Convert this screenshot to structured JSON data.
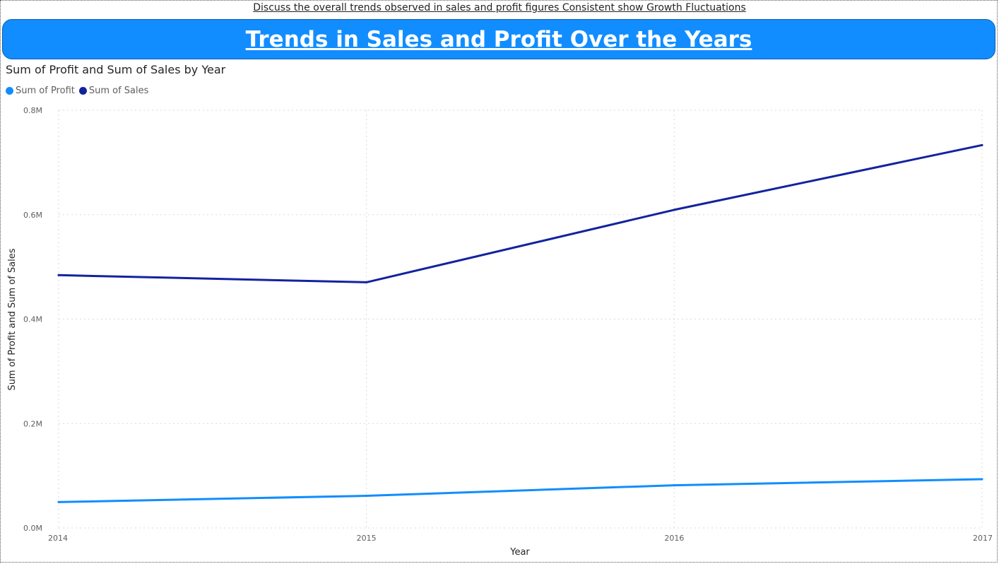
{
  "page": {
    "top_note": "Discuss the overall trends observed in sales and profit figures Consistent show Growth Fluctuations",
    "banner_title": "Trends in Sales and Profit Over the Years"
  },
  "colors": {
    "banner": "#118DFF",
    "profit": "#118DFF",
    "sales": "#12239E",
    "grid": "#d9d9d9"
  },
  "chart_data": {
    "type": "line",
    "title": "Sum of Profit and Sum of Sales by Year",
    "xlabel": "Year",
    "ylabel": "Sum of Profit and Sum of Sales",
    "x": [
      2014,
      2015,
      2016,
      2017
    ],
    "x_tick_labels": [
      "2014",
      "2015",
      "2016",
      "2017"
    ],
    "ylim": [
      0,
      800000
    ],
    "y_ticks": [
      0,
      200000,
      400000,
      600000,
      800000
    ],
    "y_tick_labels": [
      "0.0M",
      "0.2M",
      "0.4M",
      "0.6M",
      "0.8M"
    ],
    "grid": true,
    "legend_position": "top-left",
    "series": [
      {
        "name": "Sum of Profit",
        "color": "#118DFF",
        "values": [
          49544,
          61619,
          81795,
          93439
        ]
      },
      {
        "name": "Sum of Sales",
        "color": "#12239E",
        "values": [
          484247,
          470533,
          609206,
          733215
        ]
      }
    ]
  }
}
